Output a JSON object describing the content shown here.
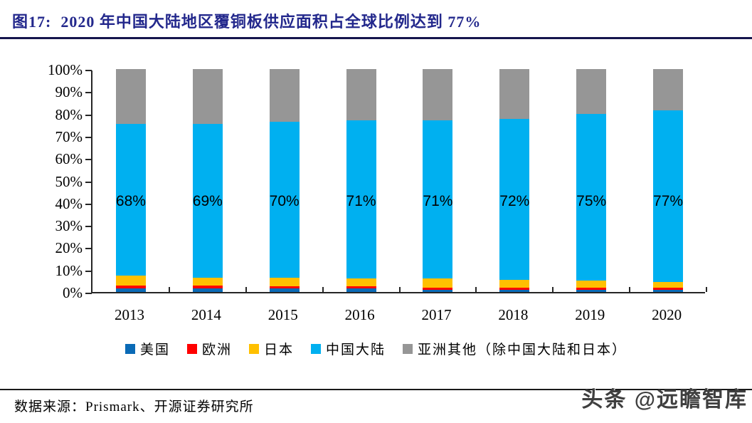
{
  "figure": {
    "title": "图17:  2020 年中国大陆地区覆铜板供应面积占全球比例达到 77%",
    "source": "数据来源：Prismark、开源证券研究所",
    "watermark": "头条 @远瞻智库"
  },
  "chart_data": {
    "type": "bar",
    "stacked": true,
    "unit": "percent",
    "title": "2020 年中国大陆地区覆铜板供应面积占全球比例达到 77%",
    "categories": [
      "2013",
      "2014",
      "2015",
      "2016",
      "2017",
      "2018",
      "2019",
      "2020"
    ],
    "series": [
      {
        "name": "美国",
        "key": "usa",
        "color": "#0A6AB6",
        "values": [
          1.5,
          1.5,
          1.5,
          1.5,
          1,
          1,
          1,
          1
        ]
      },
      {
        "name": "欧洲",
        "key": "europe",
        "color": "#FF0000",
        "values": [
          1.5,
          1.5,
          1,
          1,
          1,
          1,
          1,
          1
        ]
      },
      {
        "name": "日本",
        "key": "japan",
        "color": "#FFC000",
        "values": [
          4.5,
          3.5,
          4,
          3.5,
          4,
          3.5,
          3,
          2.5
        ]
      },
      {
        "name": "中国大陆",
        "key": "china-mainland",
        "color": "#00B0F0",
        "values": [
          68,
          69,
          70,
          71,
          71,
          72,
          75,
          77
        ]
      },
      {
        "name": "亚洲其他（除中国大陆和日本）",
        "key": "asia-other",
        "color": "#969696",
        "values": [
          24.5,
          24.5,
          23.5,
          23,
          23,
          22.5,
          20,
          18.5
        ]
      }
    ],
    "bar_labels": [
      "68%",
      "69%",
      "70%",
      "71%",
      "71%",
      "72%",
      "75%",
      "77%"
    ],
    "bar_labels_series": "中国大陆",
    "y_ticks": [
      "0%",
      "10%",
      "20%",
      "30%",
      "40%",
      "50%",
      "60%",
      "70%",
      "80%",
      "90%",
      "100%"
    ],
    "ylim": [
      0,
      100
    ],
    "xlabel": "",
    "ylabel": "",
    "grid": false,
    "legend_position": "bottom"
  }
}
